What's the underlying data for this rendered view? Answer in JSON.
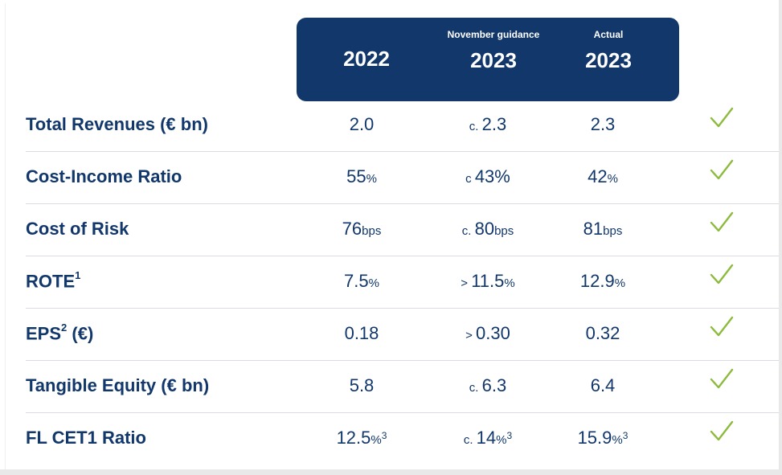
{
  "header": {
    "col1": {
      "sub": "",
      "year": "2022"
    },
    "col2": {
      "sub": "November guidance",
      "year": "2023"
    },
    "col3": {
      "sub": "Actual",
      "year": "2023"
    }
  },
  "colors": {
    "navy": "#12376b",
    "check_green": "#8dbb3e"
  },
  "rows": [
    {
      "label": "Total Revenues (€ bn)",
      "sup": "",
      "v1": {
        "pre": "",
        "main": "2.0",
        "suf": "",
        "fn": ""
      },
      "v2": {
        "pre": "c. ",
        "main": "2.3",
        "suf": "",
        "fn": ""
      },
      "v3": {
        "pre": "",
        "main": "2.3",
        "suf": "",
        "fn": ""
      },
      "status_icon": "checkmark-icon"
    },
    {
      "label": "Cost-Income Ratio",
      "sup": "",
      "v1": {
        "pre": "",
        "main": "55",
        "suf": "%",
        "fn": ""
      },
      "v2": {
        "pre": "c ",
        "main": "43%",
        "suf": "",
        "fn": ""
      },
      "v3": {
        "pre": "",
        "main": "42",
        "suf": "%",
        "fn": ""
      },
      "status_icon": "checkmark-icon"
    },
    {
      "label": "Cost of Risk",
      "sup": "",
      "v1": {
        "pre": "",
        "main": "76",
        "suf": "bps",
        "fn": ""
      },
      "v2": {
        "pre": "c. ",
        "main": "80",
        "suf": "bps",
        "fn": ""
      },
      "v3": {
        "pre": "",
        "main": "81",
        "suf": "bps",
        "fn": ""
      },
      "status_icon": "checkmark-icon"
    },
    {
      "label": "ROTE",
      "sup": "1",
      "v1": {
        "pre": "",
        "main": "7.5",
        "suf": "%",
        "fn": ""
      },
      "v2": {
        "pre": "> ",
        "main": "11.5",
        "suf": "%",
        "fn": ""
      },
      "v3": {
        "pre": "",
        "main": "12.9",
        "suf": "%",
        "fn": ""
      },
      "status_icon": "checkmark-icon"
    },
    {
      "label": "EPS",
      "sup": "2",
      "label_tail": " (€)",
      "v1": {
        "pre": "",
        "main": "0.18",
        "suf": "",
        "fn": ""
      },
      "v2": {
        "pre": "> ",
        "main": "0.30",
        "suf": "",
        "fn": ""
      },
      "v3": {
        "pre": "",
        "main": "0.32",
        "suf": "",
        "fn": ""
      },
      "status_icon": "checkmark-icon"
    },
    {
      "label": "Tangible Equity (€ bn)",
      "sup": "",
      "v1": {
        "pre": "",
        "main": "5.8",
        "suf": "",
        "fn": ""
      },
      "v2": {
        "pre": "c. ",
        "main": "6.3",
        "suf": "",
        "fn": ""
      },
      "v3": {
        "pre": "",
        "main": "6.4",
        "suf": "",
        "fn": ""
      },
      "status_icon": "checkmark-icon"
    },
    {
      "label": "FL CET1 Ratio",
      "sup": "",
      "v1": {
        "pre": "",
        "main": "12.5",
        "suf": "%",
        "fn": "3"
      },
      "v2": {
        "pre": "c. ",
        "main": "14",
        "suf": "%",
        "fn": "3"
      },
      "v3": {
        "pre": "",
        "main": "15.9",
        "suf": "%",
        "fn": "3"
      },
      "status_icon": "checkmark-icon"
    }
  ]
}
